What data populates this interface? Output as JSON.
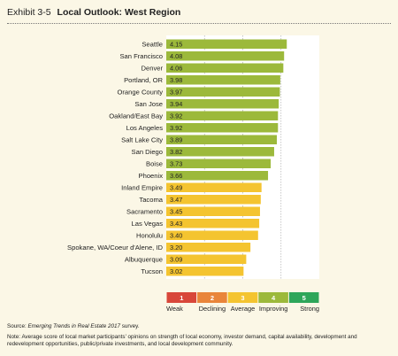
{
  "header": {
    "exhibit_number": "Exhibit 3-5",
    "title": "Local Outlook: West Region"
  },
  "chart_data": {
    "type": "bar",
    "orientation": "horizontal",
    "title": "Local Outlook: West Region",
    "xlim": [
      1,
      5
    ],
    "gridlines_at": [
      2,
      3,
      4
    ],
    "categories": [
      "Seattle",
      "San Francisco",
      "Denver",
      "Portland, OR",
      "Orange County",
      "San Jose",
      "Oakland/East Bay",
      "Los Angeles",
      "Salt Lake City",
      "San Diego",
      "Boise",
      "Phoenix",
      "Inland Empire",
      "Tacoma",
      "Sacramento",
      "Las Vegas",
      "Honolulu",
      "Spokane, WA/Coeur d'Alene, ID",
      "Albuquerque",
      "Tucson"
    ],
    "values": [
      4.15,
      4.08,
      4.06,
      3.98,
      3.97,
      3.94,
      3.92,
      3.92,
      3.89,
      3.82,
      3.73,
      3.66,
      3.49,
      3.47,
      3.45,
      3.43,
      3.4,
      3.2,
      3.09,
      3.02
    ],
    "value_labels": [
      "4.15",
      "4.08",
      "4.06",
      "3.98",
      "3.97",
      "3.94",
      "3.92",
      "3.92",
      "3.89",
      "3.82",
      "3.73",
      "3.66",
      "3.49",
      "3.47",
      "3.45",
      "3.43",
      "3.40",
      "3.20",
      "3.09",
      "3.02"
    ],
    "bar_colors": {
      "improving": "#9cb93b",
      "average": "#f4c430"
    },
    "improving_threshold": 3.5,
    "scale": [
      {
        "value": "1",
        "label": "Weak",
        "color": "#d8473a"
      },
      {
        "value": "2",
        "label": "Declining",
        "color": "#e9853a"
      },
      {
        "value": "3",
        "label": "Average",
        "color": "#f4c430"
      },
      {
        "value": "4",
        "label": "Improving",
        "color": "#9cb93b"
      },
      {
        "value": "5",
        "label": "Strong",
        "color": "#2ea65a"
      }
    ]
  },
  "source": {
    "prefix": "Source: ",
    "publication": "Emerging Trends in Real Estate 2017",
    "suffix": " survey."
  },
  "note": "Note: Average score of local market participants' opinions on strength of local economy, investor demand, capital availability, development and redevelopment opportunities, public/private investments, and local development community."
}
